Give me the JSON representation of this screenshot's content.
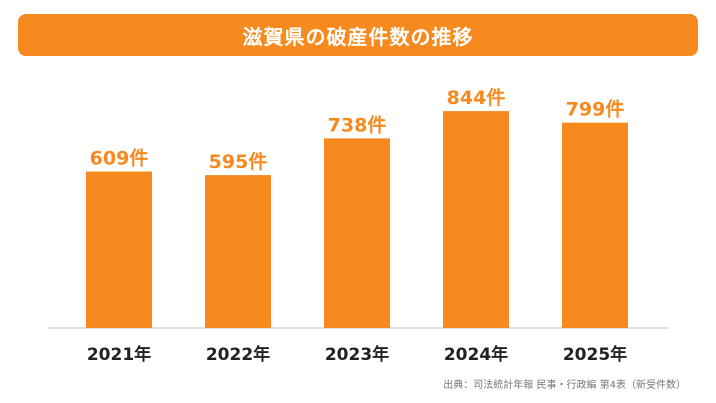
{
  "chart_data": {
    "type": "bar",
    "title": "滋賀県の破産件数の推移",
    "categories": [
      "2021年",
      "2022年",
      "2023年",
      "2024年",
      "2025年"
    ],
    "values": [
      609,
      595,
      738,
      844,
      799
    ],
    "value_labels": [
      "609件",
      "595件",
      "738件",
      "844件",
      "799件"
    ],
    "ylim": [
      0,
      860
    ],
    "grid": false,
    "bar_color": "#f68a1f"
  },
  "source": "出典：司法統計年報 民事・行政編 第4表（新受件数）"
}
